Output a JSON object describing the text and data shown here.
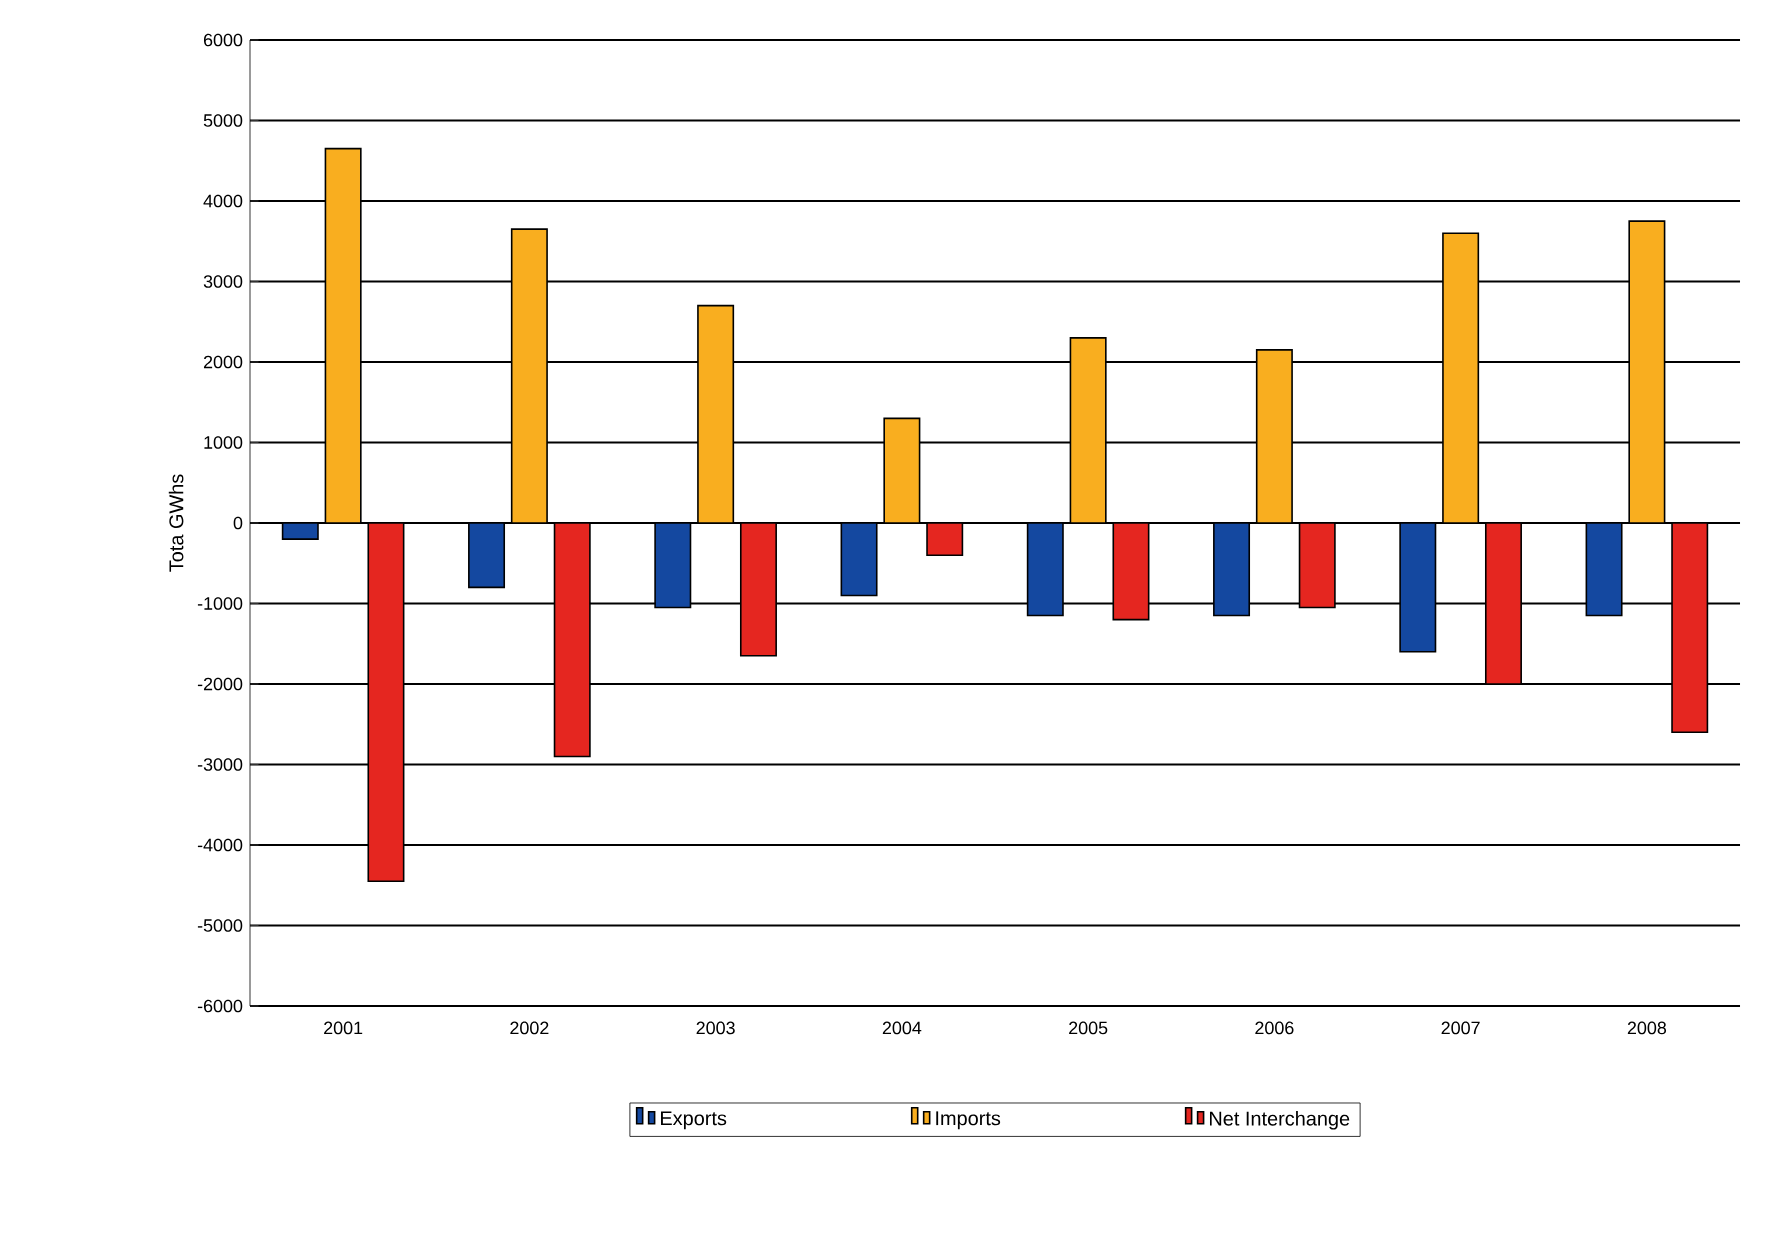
{
  "chart_data": {
    "type": "bar",
    "ylabel": "Tota GWhs",
    "categories": [
      "2001",
      "2002",
      "2003",
      "2004",
      "2005",
      "2006",
      "2007",
      "2008"
    ],
    "series": [
      {
        "name": "Exports",
        "color": "#1448a0",
        "values": [
          -200,
          -800,
          -1050,
          -900,
          -1150,
          -1150,
          -1600,
          -1150
        ]
      },
      {
        "name": "Imports",
        "color": "#f9ae1f",
        "values": [
          4650,
          3650,
          2700,
          1300,
          2300,
          2150,
          3600,
          3750
        ]
      },
      {
        "name": "Net Interchange",
        "color": "#e52620",
        "values": [
          -4450,
          -2900,
          -1650,
          -400,
          -1200,
          -1050,
          -2000,
          -2600
        ]
      }
    ],
    "ylim": [
      -6000,
      6000
    ],
    "yticks": [
      -6000,
      -5000,
      -4000,
      -3000,
      -2000,
      -1000,
      0,
      1000,
      2000,
      3000,
      4000,
      5000,
      6000
    ],
    "grid": "y",
    "legend": "bottom"
  }
}
